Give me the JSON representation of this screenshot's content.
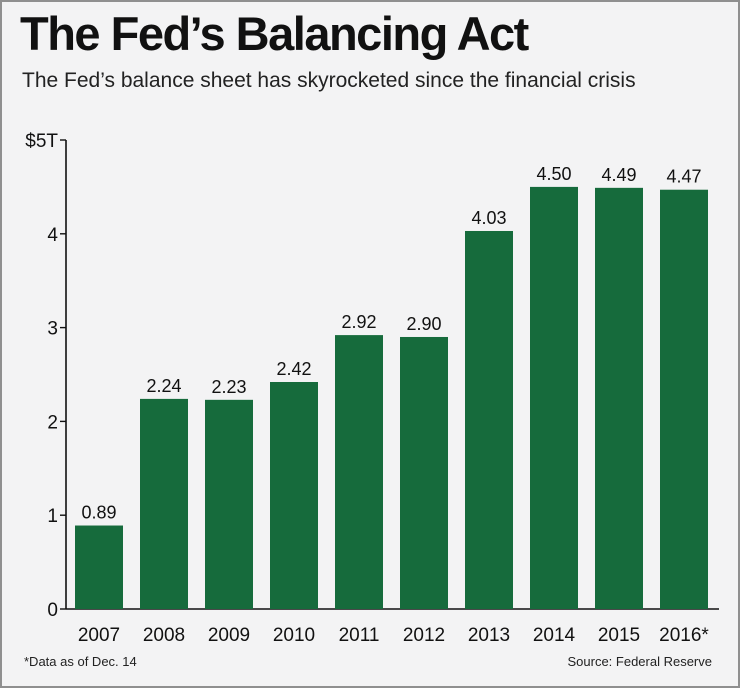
{
  "title": "The Fed’s Balancing Act",
  "subtitle": "The Fed’s balance sheet has skyrocketed since the financial crisis",
  "footnote": "*Data as of Dec. 14",
  "source": "Source: Federal Reserve",
  "colors": {
    "bar": "#166b3c",
    "axis": "#111111",
    "background": "#f3f3f4"
  },
  "chart_data": {
    "type": "bar",
    "categories": [
      "2007",
      "2008",
      "2009",
      "2010",
      "2011",
      "2012",
      "2013",
      "2014",
      "2015",
      "2016*"
    ],
    "values": [
      0.89,
      2.24,
      2.23,
      2.42,
      2.92,
      2.9,
      4.03,
      4.5,
      4.49,
      4.47
    ],
    "value_labels": [
      "0.89",
      "2.24",
      "2.23",
      "2.42",
      "2.92",
      "2.90",
      "4.03",
      "4.50",
      "4.49",
      "4.47"
    ],
    "ylim": [
      0,
      5
    ],
    "yticks": [
      0,
      1,
      2,
      3,
      4,
      5
    ],
    "ytick_labels": [
      "0",
      "1",
      "2",
      "3",
      "4",
      "$5T"
    ],
    "grid": false,
    "legend": "none"
  }
}
